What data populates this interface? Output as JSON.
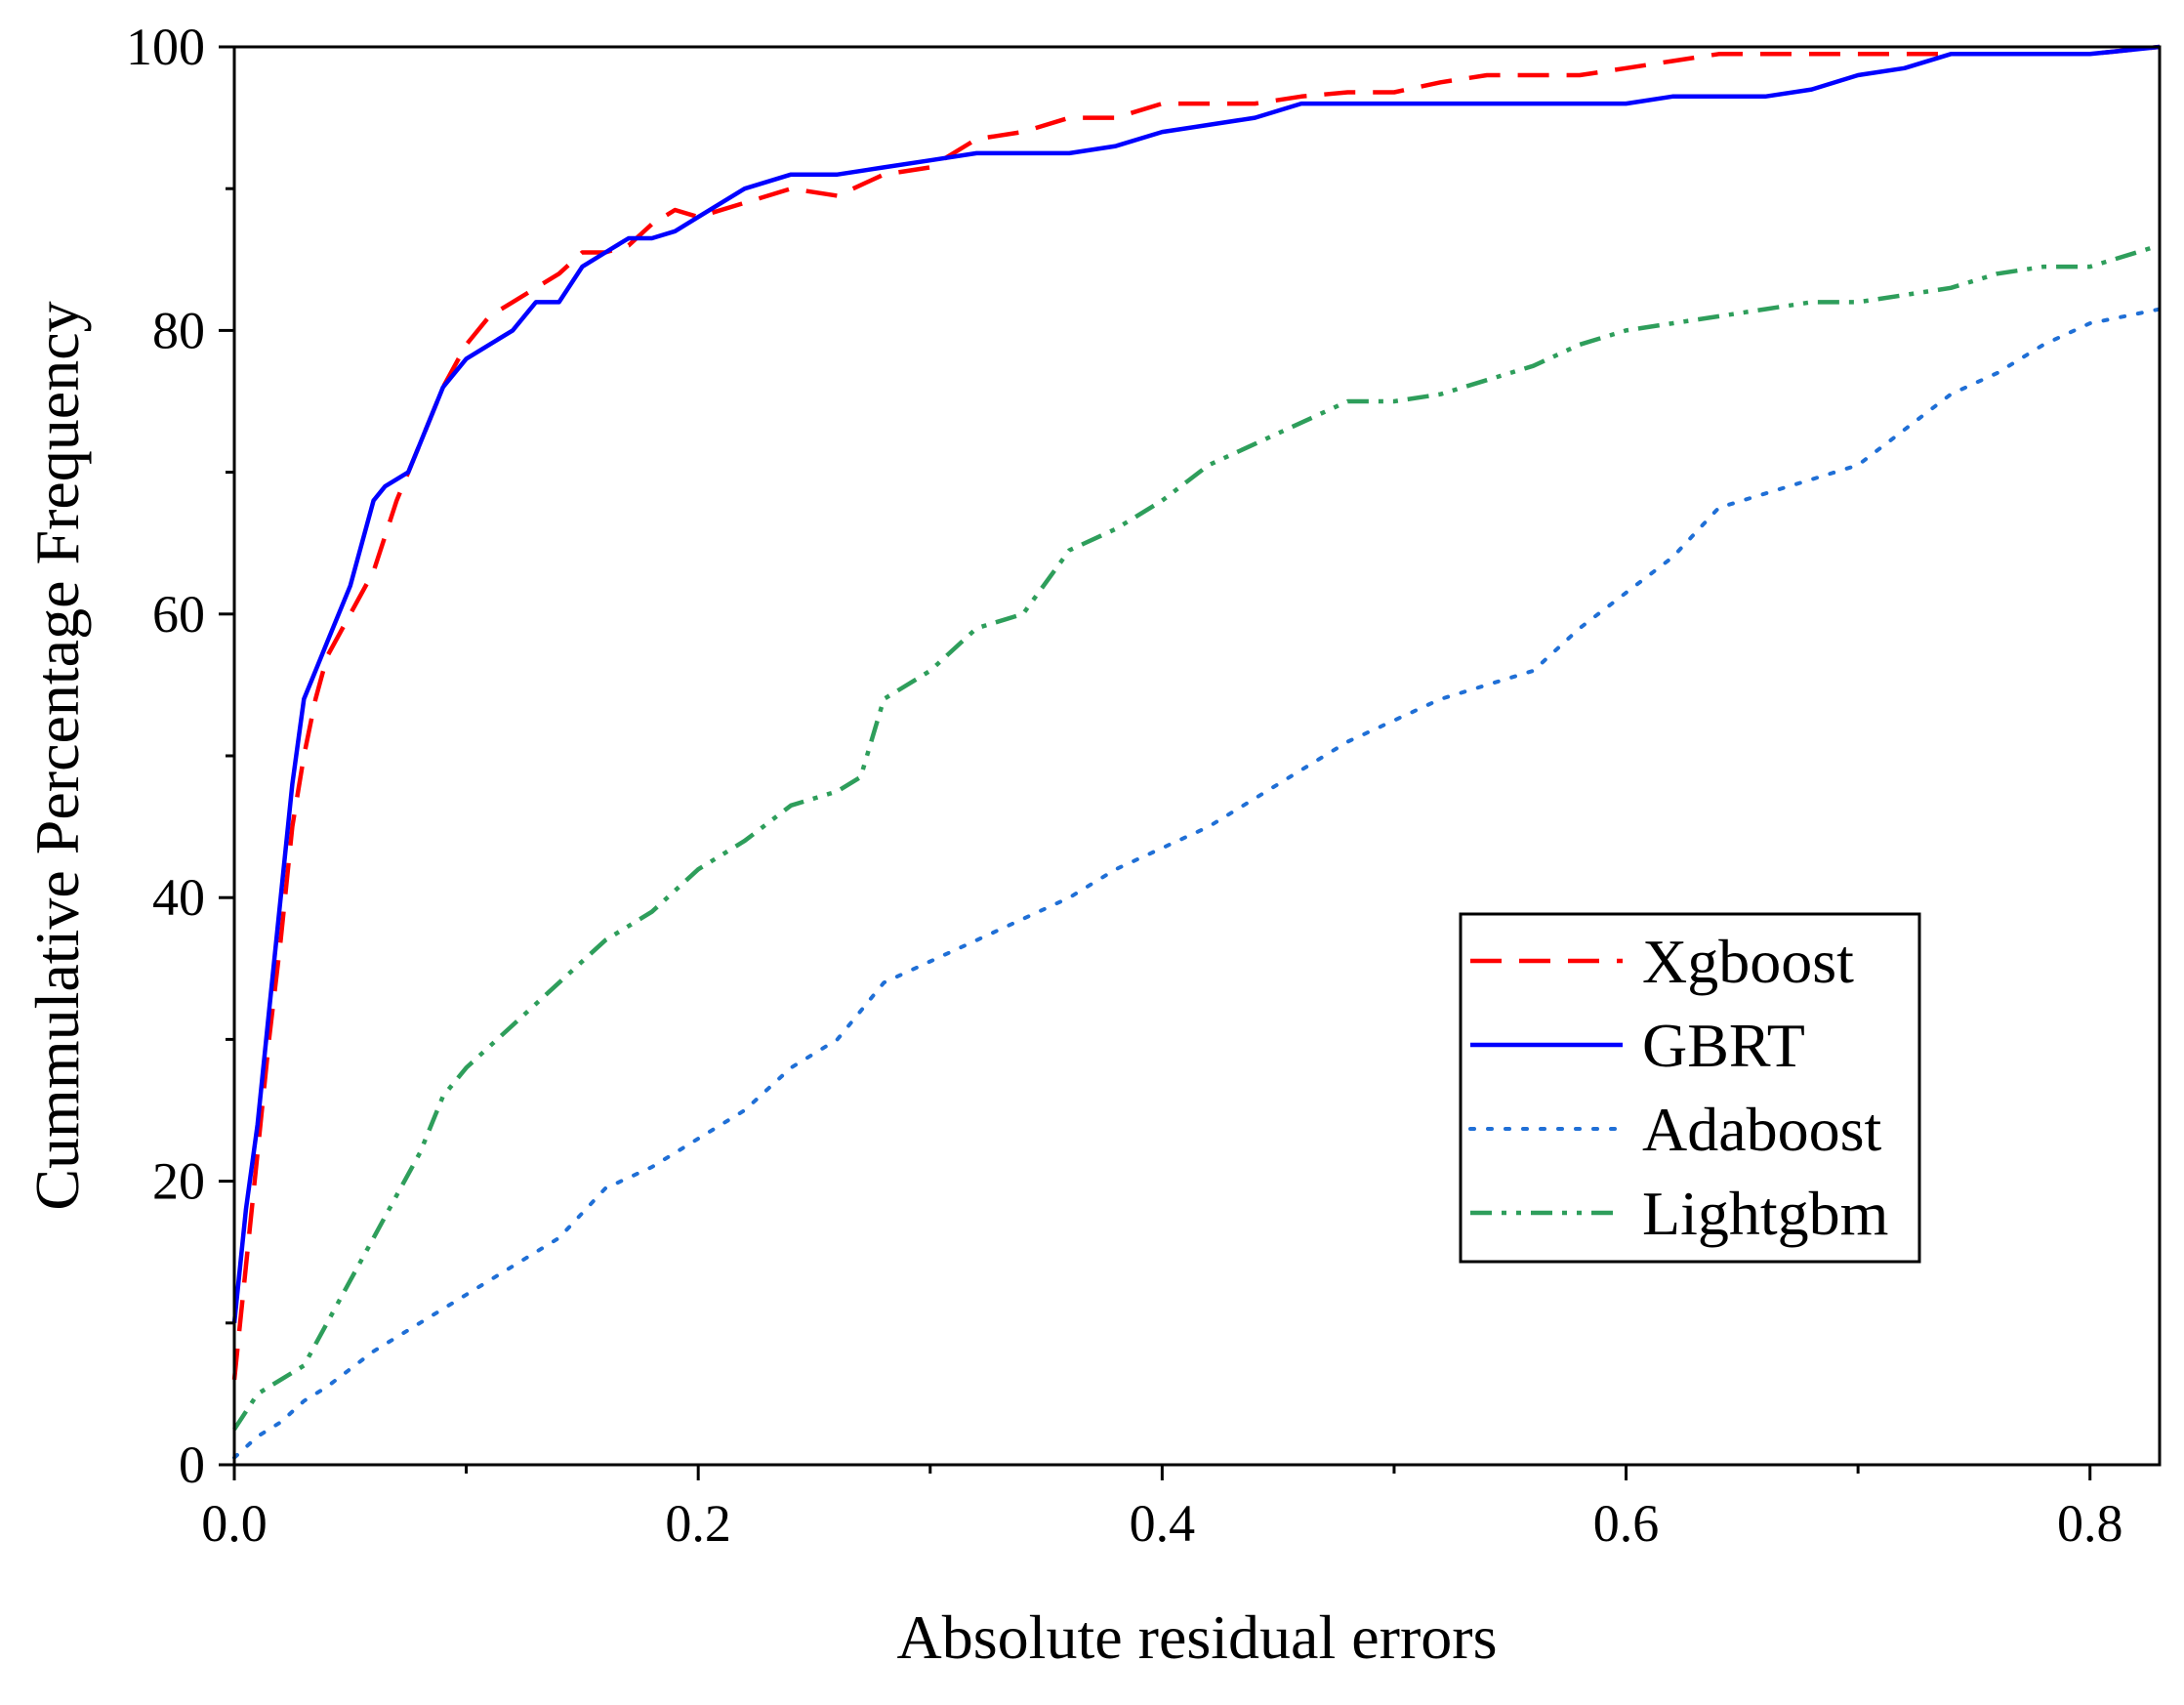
{
  "chart_data": {
    "type": "line",
    "title": "",
    "xlabel": "Absolute residual errors",
    "ylabel": "Cummulative Percentage Frequency",
    "xlim": [
      0,
      0.83
    ],
    "ylim": [
      0,
      100
    ],
    "x_ticks": [
      0.0,
      0.2,
      0.4,
      0.6,
      0.8
    ],
    "x_tick_labels": [
      "0.0",
      "0.2",
      "0.4",
      "0.6",
      "0.8"
    ],
    "x_minor_ticks": [
      0.1,
      0.3,
      0.5,
      0.7
    ],
    "y_ticks": [
      0,
      20,
      40,
      60,
      80,
      100
    ],
    "y_tick_labels": [
      "0",
      "20",
      "40",
      "60",
      "80",
      "100"
    ],
    "y_minor_ticks": [
      10,
      30,
      50,
      70,
      90
    ],
    "grid": false,
    "legend_position": "lower-right",
    "series": [
      {
        "name": "Xgboost",
        "color": "#ff0000",
        "style": "dashed",
        "x": [
          0,
          0.005,
          0.01,
          0.015,
          0.02,
          0.025,
          0.03,
          0.035,
          0.04,
          0.05,
          0.06,
          0.07,
          0.08,
          0.09,
          0.1,
          0.11,
          0.12,
          0.13,
          0.14,
          0.15,
          0.16,
          0.17,
          0.18,
          0.19,
          0.2,
          0.22,
          0.24,
          0.26,
          0.28,
          0.3,
          0.32,
          0.34,
          0.36,
          0.38,
          0.4,
          0.42,
          0.44,
          0.46,
          0.48,
          0.5,
          0.52,
          0.54,
          0.56,
          0.58,
          0.6,
          0.62,
          0.64,
          0.66,
          0.68,
          0.7,
          0.72,
          0.74,
          0.76,
          0.78,
          0.8,
          0.83
        ],
        "y": [
          6,
          14,
          22,
          30,
          37,
          45,
          50,
          54,
          57,
          60,
          63,
          68,
          72,
          76,
          79,
          81,
          82,
          83,
          84,
          85.5,
          85.5,
          86,
          87.5,
          88.5,
          88,
          89,
          90,
          89.5,
          91,
          91.5,
          93.5,
          94,
          95,
          95,
          96,
          96,
          96,
          96.5,
          96.8,
          96.8,
          97.5,
          98,
          98,
          98,
          98.5,
          99,
          99.5,
          99.5,
          99.5,
          99.5,
          99.5,
          99.5,
          99.5,
          99.5,
          99.5,
          100
        ]
      },
      {
        "name": "GBRT",
        "color": "#0000ff",
        "style": "solid",
        "x": [
          0,
          0.005,
          0.01,
          0.015,
          0.02,
          0.025,
          0.03,
          0.035,
          0.04,
          0.05,
          0.06,
          0.065,
          0.075,
          0.08,
          0.09,
          0.1,
          0.11,
          0.12,
          0.13,
          0.14,
          0.15,
          0.16,
          0.17,
          0.18,
          0.19,
          0.2,
          0.22,
          0.24,
          0.26,
          0.28,
          0.3,
          0.32,
          0.34,
          0.36,
          0.38,
          0.4,
          0.42,
          0.44,
          0.46,
          0.48,
          0.5,
          0.52,
          0.54,
          0.56,
          0.58,
          0.6,
          0.62,
          0.64,
          0.66,
          0.68,
          0.7,
          0.72,
          0.74,
          0.76,
          0.78,
          0.8,
          0.83
        ],
        "y": [
          10,
          18,
          24,
          32,
          40,
          48,
          54,
          56,
          58,
          62,
          68,
          69,
          70,
          72,
          76,
          78,
          79,
          80,
          82,
          82,
          84.5,
          85.5,
          86.5,
          86.5,
          87,
          88,
          90,
          91,
          91,
          91.5,
          92,
          92.5,
          92.5,
          92.5,
          93,
          94,
          94.5,
          95,
          96,
          96,
          96,
          96,
          96,
          96,
          96,
          96,
          96.5,
          96.5,
          96.5,
          97,
          98,
          98.5,
          99.5,
          99.5,
          99.5,
          99.5,
          100
        ]
      },
      {
        "name": "Adaboost",
        "color": "#1f6fd6",
        "style": "dotted",
        "x": [
          0,
          0.01,
          0.02,
          0.03,
          0.04,
          0.06,
          0.08,
          0.1,
          0.12,
          0.14,
          0.16,
          0.18,
          0.2,
          0.22,
          0.24,
          0.26,
          0.28,
          0.3,
          0.32,
          0.34,
          0.36,
          0.38,
          0.4,
          0.42,
          0.44,
          0.46,
          0.48,
          0.5,
          0.52,
          0.54,
          0.56,
          0.58,
          0.6,
          0.62,
          0.64,
          0.66,
          0.68,
          0.7,
          0.72,
          0.74,
          0.76,
          0.78,
          0.8,
          0.83
        ],
        "y": [
          0.5,
          2,
          3,
          4.5,
          5.5,
          8,
          10,
          12,
          14,
          16,
          19.5,
          21,
          23,
          25,
          28,
          30,
          34,
          35.5,
          37,
          38.5,
          40,
          42,
          43.5,
          45,
          47,
          49,
          51,
          52.5,
          54,
          55,
          56,
          59,
          61.5,
          64,
          67.5,
          68.5,
          69.5,
          70.5,
          73,
          75.5,
          77,
          79,
          80.5,
          81.5
        ]
      },
      {
        "name": "Lightgbm",
        "color": "#2e9e5b",
        "style": "dash-dot-dot",
        "x": [
          0,
          0.01,
          0.02,
          0.03,
          0.04,
          0.05,
          0.06,
          0.07,
          0.08,
          0.09,
          0.1,
          0.12,
          0.14,
          0.16,
          0.18,
          0.2,
          0.22,
          0.24,
          0.26,
          0.27,
          0.28,
          0.3,
          0.32,
          0.34,
          0.36,
          0.38,
          0.4,
          0.42,
          0.44,
          0.46,
          0.48,
          0.5,
          0.52,
          0.54,
          0.56,
          0.58,
          0.6,
          0.62,
          0.64,
          0.66,
          0.68,
          0.7,
          0.72,
          0.74,
          0.76,
          0.78,
          0.8,
          0.83
        ],
        "y": [
          2.5,
          5,
          6,
          7,
          10,
          13,
          16,
          19,
          22,
          26,
          28,
          31,
          34,
          37,
          39,
          42,
          44,
          46.5,
          47.5,
          48.5,
          54,
          56,
          59,
          60,
          64.5,
          66,
          68,
          70.5,
          72,
          73.5,
          75,
          75,
          75.5,
          76.5,
          77.5,
          79,
          80,
          80.5,
          81,
          81.5,
          82,
          82,
          82.5,
          83,
          84,
          84.5,
          84.5,
          86
        ]
      }
    ]
  }
}
